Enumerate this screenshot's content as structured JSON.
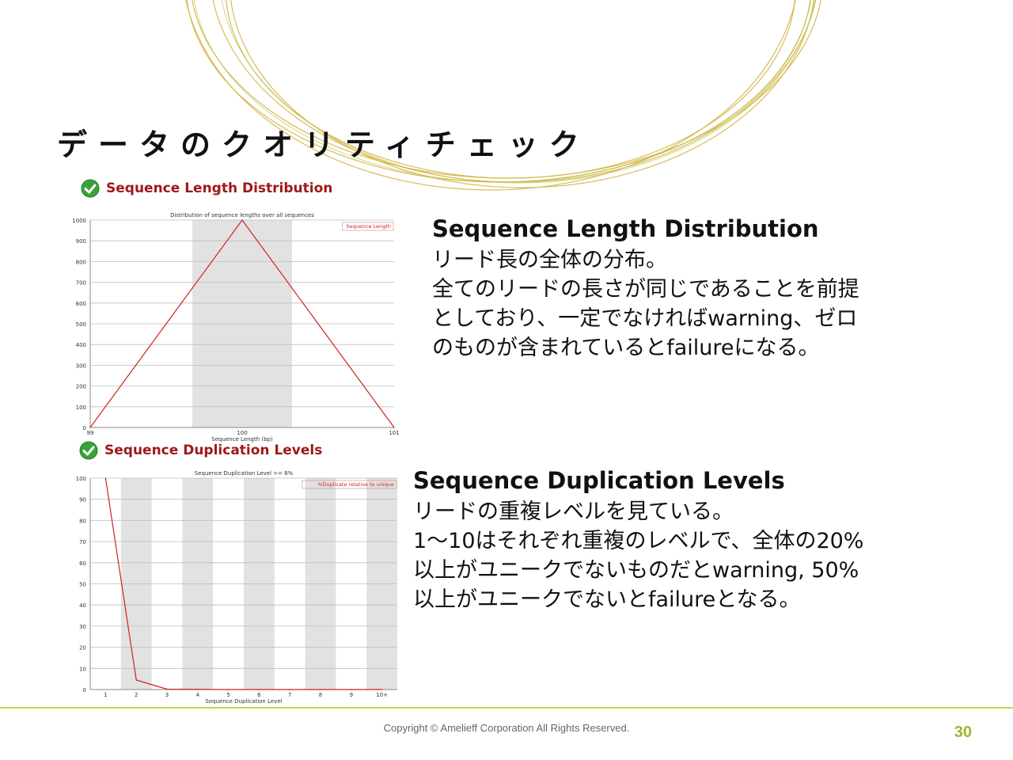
{
  "slide": {
    "title": "データのクオリティチェック",
    "copyright": "Copyright © Amelieff Corporation All Rights Reserved.",
    "page_number": "30",
    "colors": {
      "accent_green": "#9cb82c",
      "deco_gold": "#d4b03c",
      "section_red": "#a01818",
      "line_red": "#d02020",
      "band_grey": "#e2e2e2"
    }
  },
  "sections": [
    {
      "header": "Sequence Length Distribution",
      "status_icon": "check-icon",
      "heading": "Sequence Length Distribution",
      "lines": [
        "リード長の全体の分布。",
        "全てのリードの長さが同じであることを前提",
        "としており、一定でなければwarning、ゼロ",
        "のものが含まれているとfailureになる。"
      ]
    },
    {
      "header": "Sequence Duplication Levels",
      "status_icon": "check-icon",
      "heading": "Sequence Duplication Levels",
      "lines": [
        "リードの重複レベルを見ている。",
        "1～10はそれぞれ重複のレベルで、全体の20%",
        "以上がユニークでないものだとwarning, 50%",
        "以上がユニークでないとfailureとなる。"
      ]
    }
  ],
  "chart_data": [
    {
      "type": "line",
      "title": "Distribution of sequence lengths over all sequences",
      "xlabel": "Sequence Length (bp)",
      "ylabel": "",
      "categories": [
        "99",
        "100",
        "101"
      ],
      "series": [
        {
          "name": "Sequence Length",
          "values": [
            0,
            1000,
            0
          ]
        }
      ],
      "ylim": [
        0,
        1000
      ],
      "yticks": [
        0,
        100,
        200,
        300,
        400,
        500,
        600,
        700,
        800,
        900,
        1000
      ],
      "grid": true,
      "legend": "top-right",
      "shaded_bands": [
        "100"
      ]
    },
    {
      "type": "line",
      "title": "Sequence Duplication Level >= 8%",
      "xlabel": "Sequence Duplication Level",
      "ylabel": "",
      "categories": [
        "1",
        "2",
        "3",
        "4",
        "5",
        "6",
        "7",
        "8",
        "9",
        "10+"
      ],
      "series": [
        {
          "name": "%Duplicate relative to unique",
          "values": [
            100,
            4.5,
            0.2,
            0.1,
            0,
            0,
            0,
            0,
            0,
            0
          ]
        }
      ],
      "ylim": [
        0,
        100
      ],
      "yticks": [
        0,
        10,
        20,
        30,
        40,
        50,
        60,
        70,
        80,
        90,
        100
      ],
      "grid": true,
      "legend": "top-right",
      "shaded_bands": [
        "2",
        "4",
        "6",
        "8",
        "10+"
      ]
    }
  ]
}
